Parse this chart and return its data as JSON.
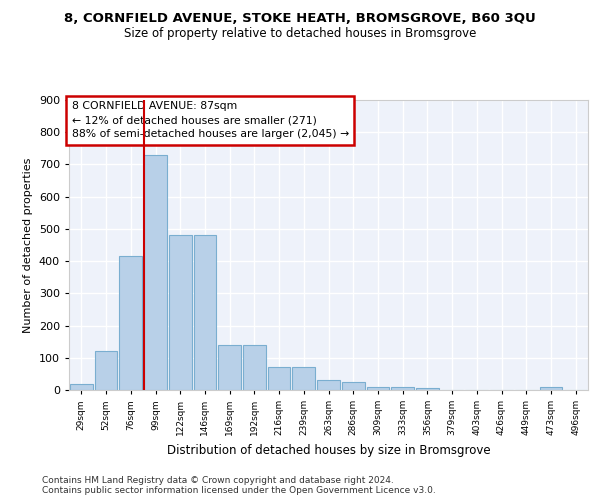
{
  "title1": "8, CORNFIELD AVENUE, STOKE HEATH, BROMSGROVE, B60 3QU",
  "title2": "Size of property relative to detached houses in Bromsgrove",
  "xlabel": "Distribution of detached houses by size in Bromsgrove",
  "ylabel": "Number of detached properties",
  "categories": [
    "29sqm",
    "52sqm",
    "76sqm",
    "99sqm",
    "122sqm",
    "146sqm",
    "169sqm",
    "192sqm",
    "216sqm",
    "239sqm",
    "263sqm",
    "286sqm",
    "309sqm",
    "333sqm",
    "356sqm",
    "379sqm",
    "403sqm",
    "426sqm",
    "449sqm",
    "473sqm",
    "496sqm"
  ],
  "values": [
    20,
    120,
    415,
    730,
    480,
    480,
    140,
    140,
    70,
    70,
    30,
    25,
    10,
    10,
    5,
    0,
    0,
    0,
    0,
    10,
    0
  ],
  "bar_color": "#b8d0e8",
  "bar_edge_color": "#7aaed0",
  "vline_color": "#cc0000",
  "vline_bar_index": 3,
  "annotation_text": "8 CORNFIELD AVENUE: 87sqm\n← 12% of detached houses are smaller (271)\n88% of semi-detached houses are larger (2,045) →",
  "annotation_box_color": "#ffffff",
  "annotation_box_edge": "#cc0000",
  "footer_text": "Contains HM Land Registry data © Crown copyright and database right 2024.\nContains public sector information licensed under the Open Government Licence v3.0.",
  "ylim": [
    0,
    900
  ],
  "yticks": [
    0,
    100,
    200,
    300,
    400,
    500,
    600,
    700,
    800,
    900
  ],
  "background_color": "#eef2fa",
  "grid_color": "#ffffff",
  "fig_bg": "#ffffff"
}
